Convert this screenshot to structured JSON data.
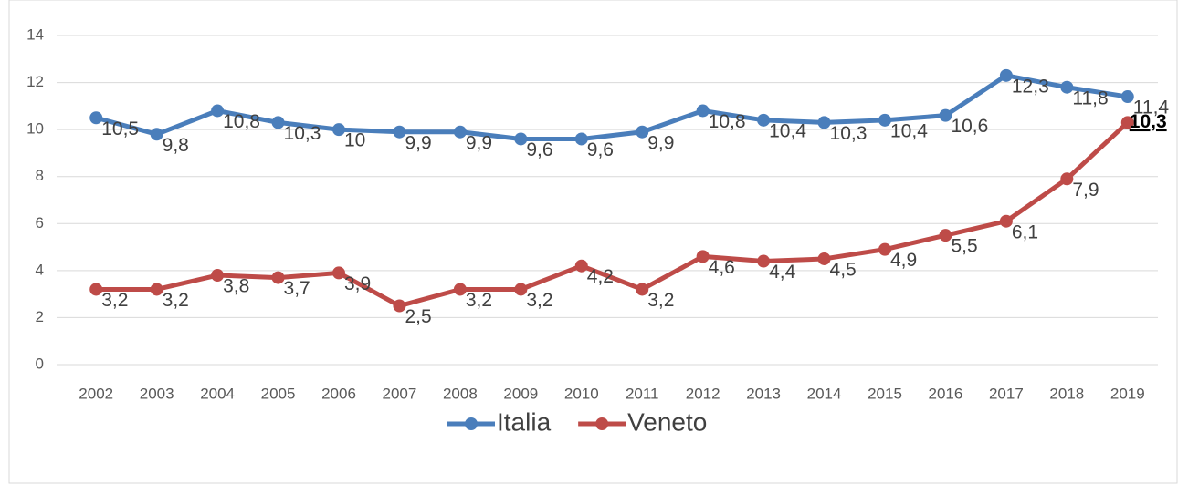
{
  "chart_data": {
    "type": "line",
    "categories": [
      "2002",
      "2003",
      "2004",
      "2005",
      "2006",
      "2007",
      "2008",
      "2009",
      "2010",
      "2011",
      "2012",
      "2013",
      "2014",
      "2015",
      "2016",
      "2017",
      "2018",
      "2019"
    ],
    "series": [
      {
        "name": "Italia",
        "color": "#4a7ebb",
        "values": [
          10.5,
          9.8,
          10.8,
          10.3,
          10,
          9.9,
          9.9,
          9.6,
          9.6,
          9.9,
          10.8,
          10.4,
          10.3,
          10.4,
          10.6,
          12.3,
          11.8,
          11.4
        ],
        "value_labels": [
          "10,5",
          "9,8",
          "10,8",
          "10,3",
          "10",
          "9,9",
          "9,9",
          "9,6",
          "9,6",
          "9,9",
          "10,8",
          "10,4",
          "10,3",
          "10,4",
          "10,6",
          "12,3",
          "11,8",
          "11,4"
        ]
      },
      {
        "name": "Veneto",
        "color": "#be4b48",
        "values": [
          3.2,
          3.2,
          3.8,
          3.7,
          3.9,
          2.5,
          3.2,
          3.2,
          4.2,
          3.2,
          4.6,
          4.4,
          4.5,
          4.9,
          5.5,
          6.1,
          7.9,
          10.3
        ],
        "value_labels": [
          "3,2",
          "3,2",
          "3,8",
          "3,7",
          "3,9",
          "2,5",
          "3,2",
          "3,2",
          "4,2",
          "3,2",
          "4,6",
          "4,4",
          "4,5",
          "4,9",
          "5,5",
          "6,1",
          "7,9",
          "10,3"
        ]
      }
    ],
    "ylim": [
      0,
      14
    ],
    "yticks": [
      0,
      2,
      4,
      6,
      8,
      10,
      12,
      14
    ],
    "grid": true,
    "legend": "bottom"
  }
}
